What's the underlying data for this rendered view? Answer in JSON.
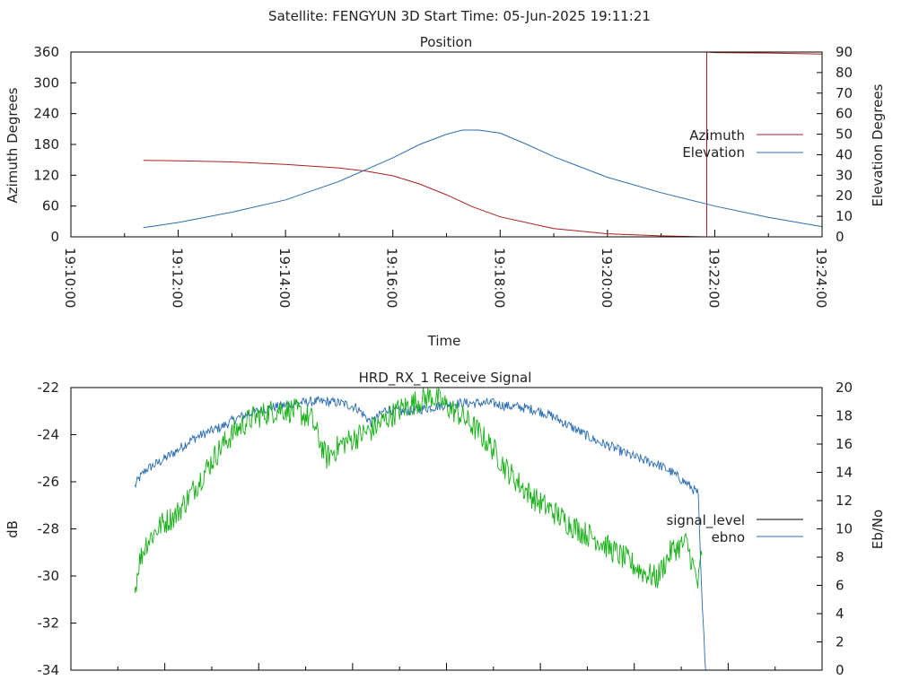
{
  "figure_title": "Satellite: FENGYUN 3D    Start Time: 05-Jun-2025 19:11:21",
  "colors": {
    "azimuth": "#a82020",
    "elevation": "#2a6cb0",
    "signal_level": "#000000",
    "ebno": "#2a6cb0",
    "green_trace": "#16b016",
    "frame": "#000000"
  },
  "chart_data": [
    {
      "type": "line",
      "title": "Position",
      "xlabel": "Time",
      "ylabel": "Azimuth Degrees",
      "y2label": "Elevation Degrees",
      "x_ticks": [
        "19:10:00",
        "19:12:00",
        "19:14:00",
        "19:16:00",
        "19:18:00",
        "19:20:00",
        "19:22:00",
        "19:24:00"
      ],
      "xlim_minutes": [
        0,
        14
      ],
      "ylim": [
        0,
        360
      ],
      "y_ticks": [
        "0",
        "60",
        "120",
        "180",
        "240",
        "300",
        "360"
      ],
      "y2lim": [
        0,
        90
      ],
      "y2_ticks": [
        "0",
        "10",
        "20",
        "30",
        "40",
        "50",
        "60",
        "70",
        "80",
        "90"
      ],
      "legend_position": "right",
      "grid": false,
      "series": [
        {
          "name": "Azimuth",
          "axis": "left",
          "x_minutes": [
            1.35,
            2.0,
            3.0,
            4.0,
            5.0,
            5.5,
            6.0,
            6.5,
            7.0,
            7.5,
            8.0,
            9.0,
            10.0,
            11.0,
            11.8,
            11.85,
            11.85,
            12.0,
            13.0,
            14.0
          ],
          "values": [
            149,
            148,
            146,
            141,
            134,
            128,
            119,
            103,
            82,
            58,
            39,
            16,
            6,
            2,
            0,
            0,
            360,
            359,
            358,
            356
          ]
        },
        {
          "name": "Elevation",
          "axis": "right",
          "x_minutes": [
            1.35,
            2.0,
            3.0,
            4.0,
            5.0,
            6.0,
            6.5,
            7.0,
            7.3,
            7.6,
            8.0,
            8.5,
            9.0,
            10.0,
            11.0,
            12.0,
            13.0,
            14.0
          ],
          "values": [
            4.5,
            7,
            12,
            18,
            27,
            38.5,
            45,
            50,
            52,
            52,
            50.5,
            45,
            39,
            29,
            21.5,
            15,
            9.5,
            5
          ]
        }
      ]
    },
    {
      "type": "line",
      "title": "HRD_RX_1 Receive Signal",
      "ylabel": "dB",
      "y2label": "Eb/No",
      "ylim": [
        -34,
        -22
      ],
      "y_ticks": [
        "-22",
        "-24",
        "-26",
        "-28",
        "-30",
        "-32",
        "-34"
      ],
      "y2lim": [
        0,
        20
      ],
      "y2_ticks": [
        "0",
        "2",
        "4",
        "6",
        "8",
        "10",
        "12",
        "14",
        "16",
        "18",
        "20"
      ],
      "legend_position": "right",
      "grid": false,
      "x_range": [
        0,
        100
      ],
      "series": [
        {
          "name": "signal_level",
          "axis": "left",
          "x": [],
          "values": []
        },
        {
          "name": "ebno",
          "axis": "right",
          "x": [
            8.5,
            9,
            10,
            12,
            14,
            16,
            18,
            20,
            22,
            24,
            26,
            28,
            30,
            32,
            34,
            36,
            38,
            40,
            42,
            44,
            46,
            48,
            50,
            52,
            54,
            56,
            58,
            60,
            62,
            64,
            66,
            68,
            70,
            72,
            74,
            76,
            78,
            80,
            82,
            83.5,
            84,
            84.5
          ],
          "values": [
            13,
            13.5,
            14.2,
            14.8,
            15.5,
            16.3,
            16.8,
            17.2,
            17.8,
            18.2,
            18.5,
            18.7,
            18.9,
            19.0,
            19.0,
            18.9,
            18.6,
            17.5,
            18.5,
            18.3,
            18.4,
            18.6,
            18.8,
            18.9,
            18.9,
            18.9,
            18.7,
            18.6,
            18.4,
            18.0,
            17.4,
            16.8,
            16.2,
            15.8,
            15.3,
            14.9,
            14.6,
            14.0,
            13.2,
            12.5,
            5.0,
            0.0
          ]
        },
        {
          "name": "",
          "axis": "right",
          "x": [
            8.5,
            9,
            10,
            12,
            14,
            16,
            18,
            20,
            22,
            24,
            26,
            28,
            30,
            32,
            34,
            36,
            38,
            40,
            42,
            44,
            46,
            48,
            50,
            52,
            54,
            56,
            58,
            60,
            62,
            64,
            66,
            68,
            70,
            72,
            74,
            76,
            78,
            80,
            82,
            83.5,
            84
          ],
          "values": [
            5.5,
            7.5,
            9.0,
            10.3,
            11.0,
            12.5,
            14.2,
            15.8,
            17.0,
            17.8,
            18.2,
            18.5,
            18.3,
            17.8,
            15.0,
            16.0,
            16.5,
            17.0,
            17.8,
            18.5,
            19.0,
            19.4,
            18.7,
            18.0,
            17.0,
            15.8,
            14.2,
            13.0,
            12.0,
            11.3,
            10.5,
            9.8,
            9.3,
            8.5,
            7.8,
            7.0,
            6.5,
            8.5,
            9.0,
            6.0,
            8.5
          ]
        }
      ]
    }
  ]
}
